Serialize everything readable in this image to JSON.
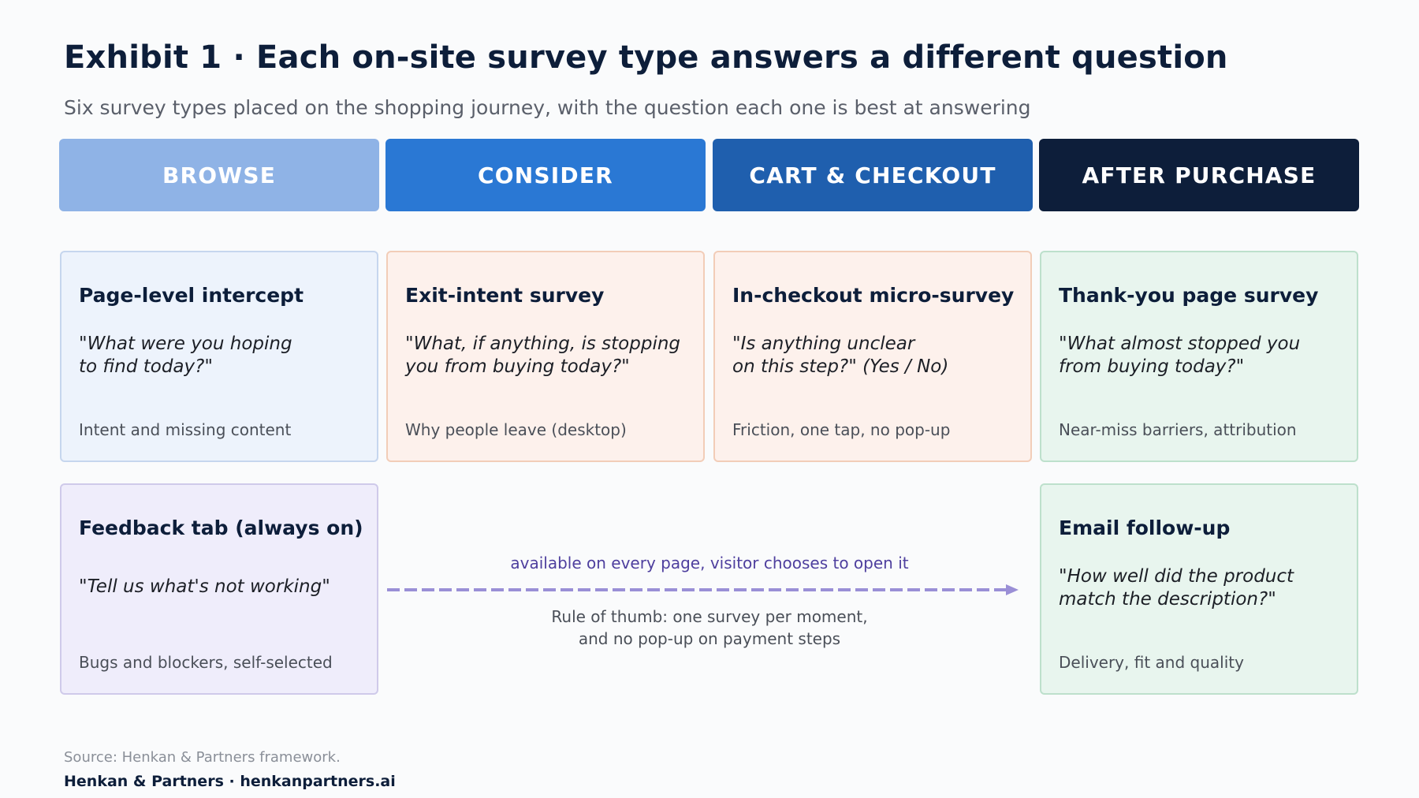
{
  "header": {
    "title": "Exhibit 1 · Each on-site survey type answers a different question",
    "subtitle": "Six survey types placed on the shopping journey, with the question each one is best at answering"
  },
  "stages": [
    {
      "label": "BROWSE",
      "color": "#8fb3e6"
    },
    {
      "label": "CONSIDER",
      "color": "#2a78d4"
    },
    {
      "label": "CART & CHECKOUT",
      "color": "#1f5fae"
    },
    {
      "label": "AFTER PURCHASE",
      "color": "#0d1e3a"
    }
  ],
  "cards": [
    {
      "title": "Page-level intercept",
      "quote": "\"What were you hoping\nto find today?\"",
      "note": "Intent and missing content"
    },
    {
      "title": "Exit-intent survey",
      "quote": "\"What, if anything, is stopping\nyou from buying today?\"",
      "note": "Why people leave (desktop)"
    },
    {
      "title": "In-checkout micro-survey",
      "quote": "\"Is anything unclear\non this step?\" (Yes / No)",
      "note": "Friction, one tap, no pop-up"
    },
    {
      "title": "Thank-you page survey",
      "quote": "\"What almost stopped you\nfrom buying today?\"",
      "note": "Near-miss barriers, attribution"
    },
    {
      "title": "Feedback tab (always on)",
      "quote": "\"Tell us what's not working\"",
      "note": "Bugs and blockers, self-selected"
    },
    {
      "title": "Email follow-up",
      "quote": "\"How well did the product\nmatch the description?\"",
      "note": "Delivery, fit and quality"
    }
  ],
  "connector": {
    "label": "available on every page, visitor chooses to open it",
    "color": "#9a8fd6",
    "rule": "Rule of thumb: one survey per moment,\nand no pop-up on payment steps"
  },
  "footer": {
    "source": "Source: Henkan & Partners framework.",
    "brand": "Henkan & Partners · henkanpartners.ai"
  }
}
